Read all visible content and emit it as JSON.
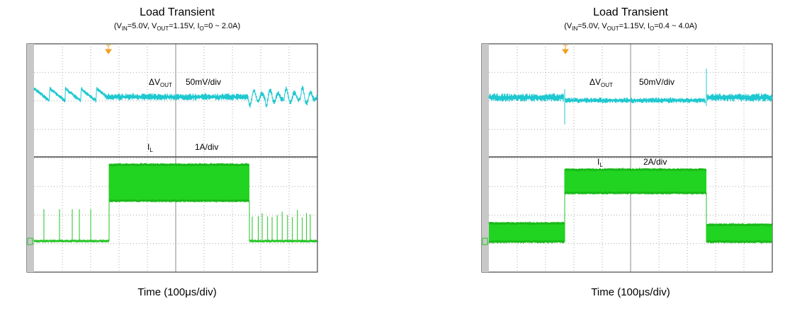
{
  "panels": [
    {
      "title": "Load Transient",
      "subtitle": [
        "(V",
        "IN",
        "=5.0V, V",
        "OUT",
        "=1.15V, I",
        "O",
        "=0 ~ 2.0A)"
      ],
      "voltage_label": [
        "ΔV",
        "OUT"
      ],
      "voltage_scale": "50mV/div",
      "current_label": [
        "I",
        "L"
      ],
      "current_scale": "1A/div",
      "x_label": "Time (100μs/div)"
    },
    {
      "title": "Load Transient",
      "subtitle": [
        "(V",
        "IN",
        "=5.0V, V",
        "OUT",
        "=1.15V, I",
        "O",
        "=0.4 ~ 4.0A)"
      ],
      "voltage_label": [
        "ΔV",
        "OUT"
      ],
      "voltage_scale": "50mV/div",
      "current_label": [
        "I",
        "L"
      ],
      "current_scale": "2A/div",
      "x_label": "Time (100μs/div)"
    }
  ]
}
